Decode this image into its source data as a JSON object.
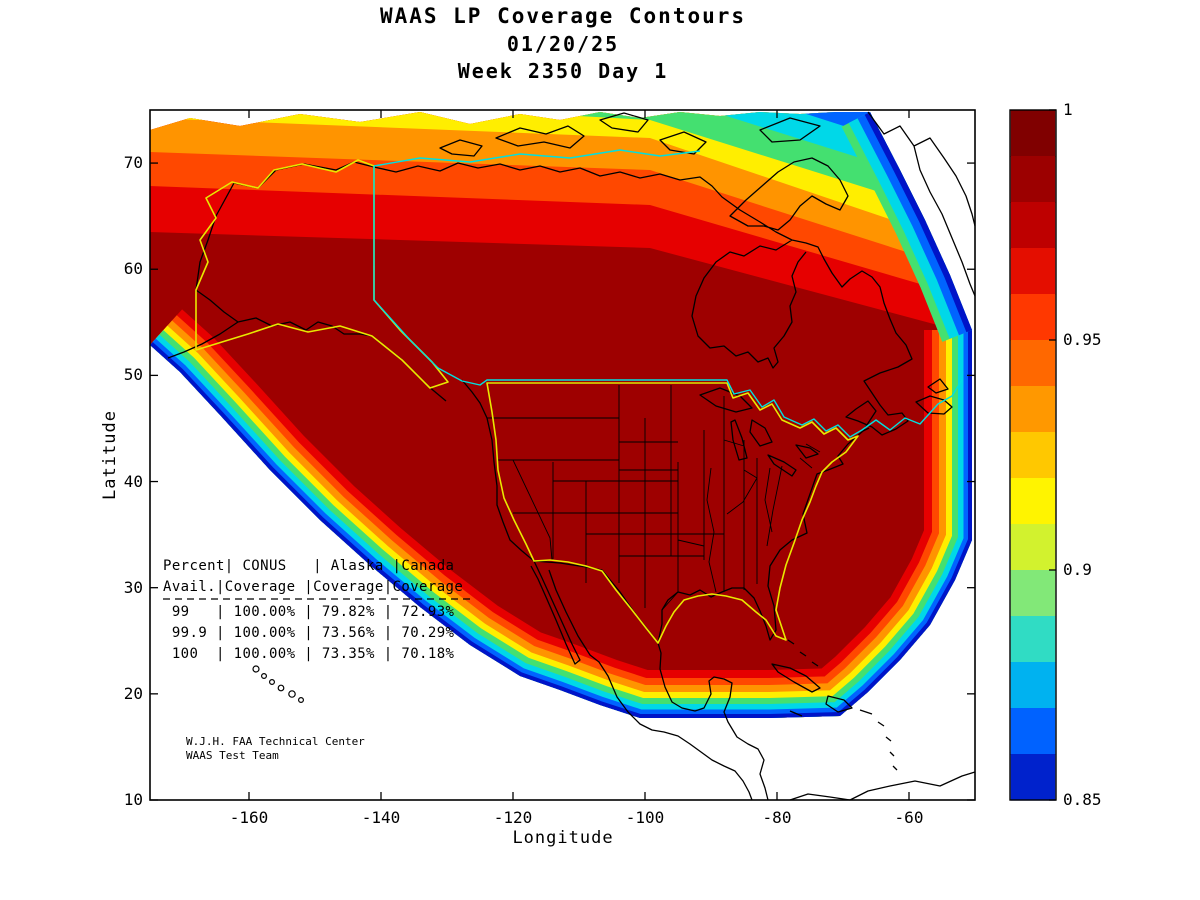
{
  "title": {
    "line1": "WAAS LP Coverage Contours",
    "line2": "01/20/25",
    "line3": "Week 2350 Day 1"
  },
  "axes": {
    "xlabel": "Longitude",
    "ylabel": "Latitude",
    "x_ticks": [
      -160,
      -140,
      -120,
      -100,
      -80,
      -60
    ],
    "y_ticks": [
      10,
      20,
      30,
      40,
      50,
      60,
      70
    ],
    "xlim": [
      -175,
      -50
    ],
    "ylim": [
      10,
      75
    ]
  },
  "colorbar": {
    "min": 0.85,
    "max": 1.0,
    "tick_labels": [
      {
        "label": "1",
        "value": 1.0
      },
      {
        "label": "0.95",
        "value": 0.95
      },
      {
        "label": "0.9",
        "value": 0.9
      },
      {
        "label": "0.85",
        "value": 0.85
      }
    ],
    "band_colors_top_to_bottom": [
      "#800000",
      "#9C0000",
      "#BE0000",
      "#E40E00",
      "#FF3800",
      "#FF6800",
      "#FF9800",
      "#FFC800",
      "#FFF400",
      "#D2F22E",
      "#82E878",
      "#30DCC4",
      "#00B2F0",
      "#0062FF",
      "#0022CC"
    ]
  },
  "palette": {
    "dark_red": "#9E0000",
    "red": "#E60000",
    "orange_red": "#FF4800",
    "orange": "#FF9400",
    "yellow": "#FFEE00",
    "green": "#44E070",
    "cyan": "#00D8E8",
    "blue": "#0064FF",
    "dark_blue": "#0014C8",
    "conus_outline": "#E8E800",
    "alaska_outline": "#E8E800",
    "canada_outline": "#00E0E0",
    "coastline": "#000000"
  },
  "coverage_table": {
    "display_lines": [
      "Percent| CONUS   | Alaska |Canada",
      "Avail.|Coverage |Coverage|Coverage",
      " 99   | 100.00% | 79.82% | 72.93%",
      " 99.9 | 100.00% | 73.56% | 70.29%",
      " 100  | 100.00% | 73.35% | 70.18%"
    ],
    "columns": [
      "Percent Avail.",
      "CONUS Coverage",
      "Alaska Coverage",
      "Canada Coverage"
    ],
    "rows": [
      [
        "99",
        "100.00%",
        "79.82%",
        "72.93%"
      ],
      [
        "99.9",
        "100.00%",
        "73.56%",
        "70.29%"
      ],
      [
        "100",
        "100.00%",
        "73.35%",
        "70.18%"
      ]
    ]
  },
  "attribution": {
    "line1": "W.J.H. FAA Technical Center",
    "line2": "WAAS Test Team"
  },
  "chart_data": {
    "type": "heatmap",
    "title": "WAAS LP Coverage Contours",
    "subtitle": [
      "01/20/25",
      "Week 2350 Day 1"
    ],
    "xlabel": "Longitude",
    "ylabel": "Latitude",
    "xlim": [
      -175,
      -50
    ],
    "ylim": [
      10,
      75
    ],
    "grid": false,
    "legend_position": "colorbar-right",
    "colorbar_range": [
      0.85,
      1.0
    ],
    "colorbar_ticks": [
      1.0,
      0.95,
      0.9,
      0.85
    ],
    "contour_bands": 15,
    "description": "Filled availability contours over North America; interior (CONUS, most of Canada, Alaska) at ~1.0 (dark red), dropping through jet colormap bands to 0.85 (dark blue) at northeastern, southwestern and Caribbean fringes.",
    "coverage_table": {
      "columns": [
        "Percent Avail.",
        "CONUS Coverage",
        "Alaska Coverage",
        "Canada Coverage"
      ],
      "rows": [
        [
          "99",
          "100.00%",
          "79.82%",
          "72.93%"
        ],
        [
          "99.9",
          "100.00%",
          "73.56%",
          "70.29%"
        ],
        [
          "100",
          "100.00%",
          "73.35%",
          "70.18%"
        ]
      ]
    },
    "annotations": [
      "W.J.H. FAA Technical Center",
      "WAAS Test Team"
    ]
  }
}
